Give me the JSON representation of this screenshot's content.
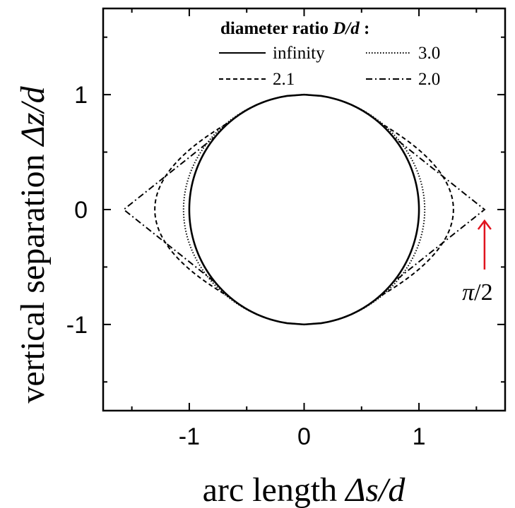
{
  "chart_data": {
    "type": "line",
    "xlabel": "arc length Δs/d",
    "ylabel": "vertical separation Δz/d",
    "xlim": [
      -1.75,
      1.75
    ],
    "ylim": [
      -1.75,
      1.75
    ],
    "x_ticks": [
      -1,
      0,
      1
    ],
    "y_ticks": [
      -1,
      0,
      1
    ],
    "x_tick_labels": [
      "-1",
      "0",
      "1"
    ],
    "y_tick_labels": [
      "-1",
      "0",
      "1"
    ],
    "grid": false,
    "legend": {
      "title_text": "diameter ratio ",
      "title_var": "D/d",
      "title_suffix": " :",
      "placement": "top"
    },
    "series": [
      {
        "name": "infinity",
        "dash": "solid",
        "max_half_width": 1.0
      },
      {
        "name": "3.0",
        "dash": "dotted",
        "max_half_width": 1.05
      },
      {
        "name": "2.1",
        "dash": "dashed",
        "max_half_width": 1.3
      },
      {
        "name": "2.0",
        "dash": "dashdot",
        "max_half_width": 1.5708
      }
    ],
    "annotation": {
      "text_symbol": "π",
      "text_rest": "/2",
      "x": 1.5708,
      "y": 0,
      "color": "#e0141e"
    }
  }
}
